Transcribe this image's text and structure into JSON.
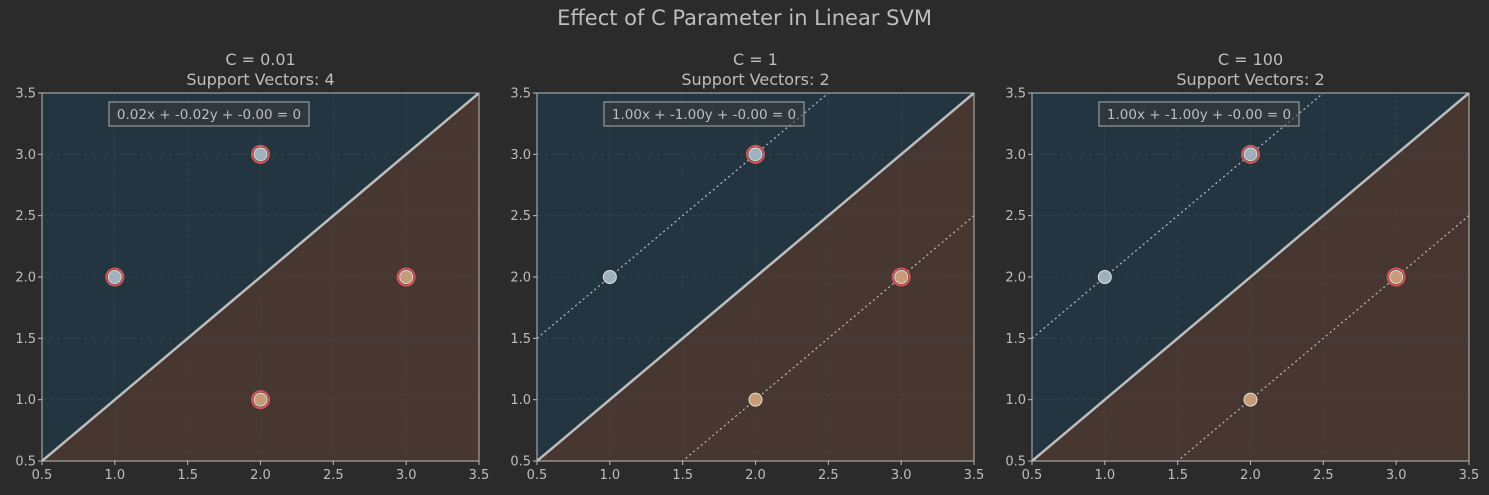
{
  "figure": {
    "title": "Effect of C Parameter in Linear SVM"
  },
  "colors": {
    "background": "#2b2b2b",
    "region_class_0": "#233540",
    "region_class_1": "#483630",
    "point_class_0": "#9fb1bc",
    "point_class_1": "#c79a78",
    "support_vector_ring": "#d65555",
    "decision_line": "#bdbdbd",
    "margin_line": "#bdbdbd",
    "axes": "#bdbdbd",
    "grid": "#3d4a52",
    "text": "#bdbdbd"
  },
  "chart_data": [
    {
      "type": "scatter",
      "title": "C = 0.01",
      "subtitle": "Support Vectors: 4",
      "equation": "0.02x + -0.02y + -0.00 = 0",
      "xlim": [
        0.5,
        3.5
      ],
      "ylim": [
        0.5,
        3.5
      ],
      "xticks": [
        "0.5",
        "1.0",
        "1.5",
        "2.0",
        "2.5",
        "3.0",
        "3.5"
      ],
      "yticks": [
        "0.5",
        "1.0",
        "1.5",
        "2.0",
        "2.5",
        "3.0",
        "3.5"
      ],
      "grid": true,
      "w": [
        0.02,
        -0.02
      ],
      "b": 0.0,
      "show_margins": false,
      "points": [
        {
          "x": 1,
          "y": 2,
          "cls": 0,
          "sv": true
        },
        {
          "x": 2,
          "y": 3,
          "cls": 0,
          "sv": true
        },
        {
          "x": 2,
          "y": 1,
          "cls": 1,
          "sv": true
        },
        {
          "x": 3,
          "y": 2,
          "cls": 1,
          "sv": true
        }
      ]
    },
    {
      "type": "scatter",
      "title": "C = 1",
      "subtitle": "Support Vectors: 2",
      "equation": "1.00x + -1.00y + -0.00 = 0",
      "xlim": [
        0.5,
        3.5
      ],
      "ylim": [
        0.5,
        3.5
      ],
      "xticks": [
        "0.5",
        "1.0",
        "1.5",
        "2.0",
        "2.5",
        "3.0",
        "3.5"
      ],
      "yticks": [
        "0.5",
        "1.0",
        "1.5",
        "2.0",
        "2.5",
        "3.0",
        "3.5"
      ],
      "grid": true,
      "w": [
        1.0,
        -1.0
      ],
      "b": 0.0,
      "show_margins": true,
      "points": [
        {
          "x": 1,
          "y": 2,
          "cls": 0,
          "sv": false
        },
        {
          "x": 2,
          "y": 3,
          "cls": 0,
          "sv": true
        },
        {
          "x": 2,
          "y": 1,
          "cls": 1,
          "sv": false
        },
        {
          "x": 3,
          "y": 2,
          "cls": 1,
          "sv": true
        }
      ]
    },
    {
      "type": "scatter",
      "title": "C = 100",
      "subtitle": "Support Vectors: 2",
      "equation": "1.00x + -1.00y + -0.00 = 0",
      "xlim": [
        0.5,
        3.5
      ],
      "ylim": [
        0.5,
        3.5
      ],
      "xticks": [
        "0.5",
        "1.0",
        "1.5",
        "2.0",
        "2.5",
        "3.0",
        "3.5"
      ],
      "yticks": [
        "0.5",
        "1.0",
        "1.5",
        "2.0",
        "2.5",
        "3.0",
        "3.5"
      ],
      "grid": true,
      "w": [
        1.0,
        -1.0
      ],
      "b": 0.0,
      "show_margins": true,
      "points": [
        {
          "x": 1,
          "y": 2,
          "cls": 0,
          "sv": false
        },
        {
          "x": 2,
          "y": 3,
          "cls": 0,
          "sv": true
        },
        {
          "x": 2,
          "y": 1,
          "cls": 1,
          "sv": false
        },
        {
          "x": 3,
          "y": 2,
          "cls": 1,
          "sv": true
        }
      ]
    }
  ]
}
